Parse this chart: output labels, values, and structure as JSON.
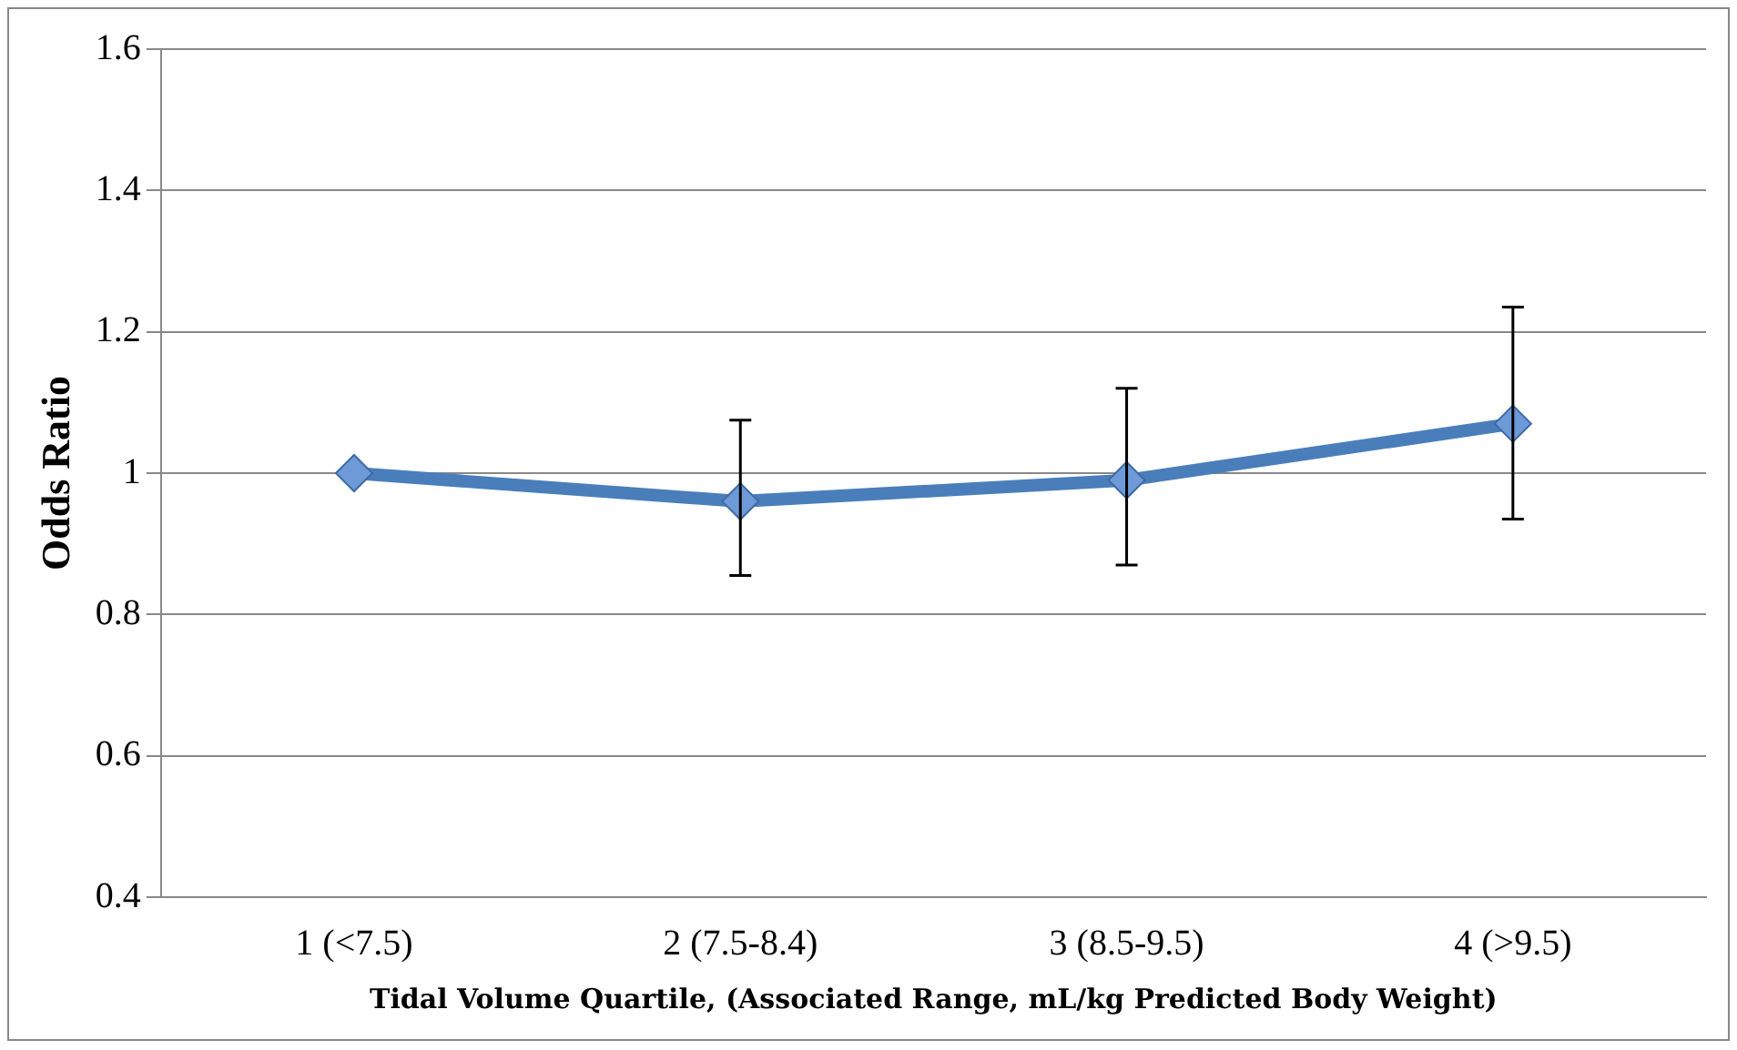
{
  "chart_data": {
    "type": "line",
    "xlabel": "Tidal Volume Quartile, (Associated Range, mL/kg Predicted Body Weight)",
    "ylabel": "Odds Ratio",
    "categories": [
      "1 (<7.5)",
      "2 (7.5-8.4)",
      "3 (8.5-9.5)",
      "4 (>9.5)"
    ],
    "series": [
      {
        "color": "#4a7ebb",
        "values": [
          1.0,
          0.96,
          0.99,
          1.07
        ],
        "errors": [
          null,
          [
            0.855,
            1.075
          ],
          [
            0.87,
            1.12
          ],
          [
            0.935,
            1.235
          ]
        ]
      }
    ],
    "ylim": [
      0.4,
      1.6
    ],
    "yticks": [
      0.4,
      0.6,
      0.8,
      1,
      1.2,
      1.4,
      1.6
    ],
    "grid": "y",
    "marker": "diamond",
    "line_style": "solid"
  }
}
